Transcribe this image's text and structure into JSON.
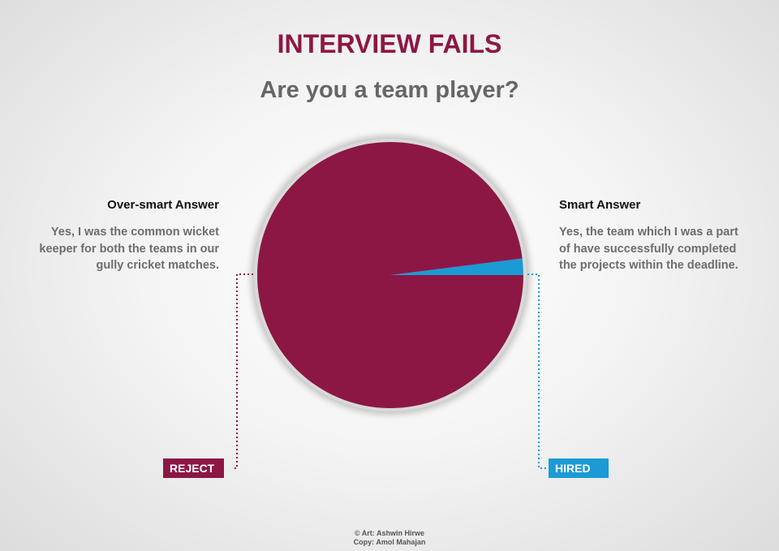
{
  "title": "INTERVIEW FAILS",
  "subtitle": "Are you a team player?",
  "left": {
    "heading": "Over-smart Answer",
    "lines": [
      "Yes, I was the common wicket",
      "keeper for both the teams in our",
      "gully cricket matches."
    ],
    "badge": "REJECT"
  },
  "right": {
    "heading": "Smart Answer",
    "lines": [
      "Yes, the team which I was a part",
      "of have successfully completed",
      "the projects within the deadline."
    ],
    "badge": "HIRED"
  },
  "credits": {
    "art": "© Art: Ashwin Hirwe",
    "copy": "Copy: Amol Mahajan"
  },
  "colors": {
    "maroon": "#8c1744",
    "blue": "#1b9ad6",
    "heading_gray": "#666666"
  },
  "chart_data": {
    "type": "pie",
    "slices": [
      {
        "label": "REJECT",
        "value": 98,
        "color": "#8c1744"
      },
      {
        "label": "HIRED",
        "value": 2,
        "color": "#1b9ad6"
      }
    ]
  }
}
